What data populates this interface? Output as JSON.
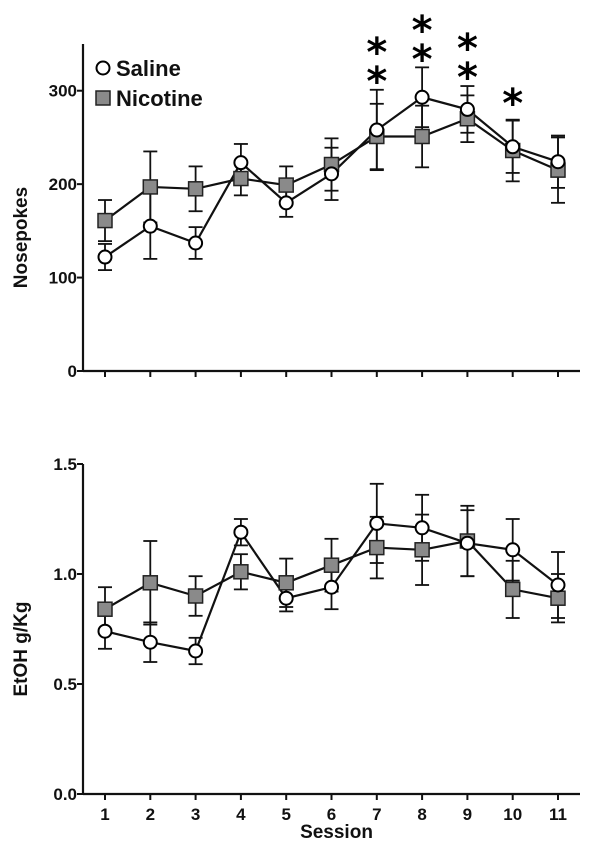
{
  "chart_data": [
    {
      "type": "line",
      "xlabel": "",
      "ylabel": "Nosepokes",
      "ylim": [
        0,
        350
      ],
      "yticks": [
        0,
        100,
        200,
        300
      ],
      "x": [
        1,
        2,
        3,
        4,
        5,
        6,
        7,
        8,
        9,
        10,
        11
      ],
      "legend": "top-left",
      "series": [
        {
          "name": "Saline",
          "marker": "open-circle",
          "color": "#000000",
          "values": [
            122,
            155,
            137,
            223,
            180,
            211,
            258,
            293,
            280,
            240,
            224
          ],
          "error": [
            14,
            35,
            17,
            20,
            15,
            28,
            43,
            32,
            25,
            28,
            28
          ]
        },
        {
          "name": "Nicotine",
          "marker": "filled-square",
          "color": "#8a8a8a",
          "values": [
            161,
            197,
            195,
            206,
            199,
            221,
            251,
            251,
            270,
            236,
            215
          ],
          "error": [
            22,
            38,
            24,
            18,
            20,
            28,
            35,
            33,
            25,
            33,
            35
          ]
        }
      ],
      "annotations": [
        {
          "x": 7,
          "text": "*"
        },
        {
          "x": 7,
          "text": "*"
        },
        {
          "x": 8,
          "text": "*"
        },
        {
          "x": 8,
          "text": "*"
        },
        {
          "x": 9,
          "text": "*"
        },
        {
          "x": 9,
          "text": "*"
        },
        {
          "x": 10,
          "text": "*"
        }
      ]
    },
    {
      "type": "line",
      "xlabel": "Session",
      "ylabel": "EtOH g/Kg",
      "ylim": [
        0,
        1.5
      ],
      "yticks": [
        "0.0",
        "0.5",
        "1.0",
        "1.5"
      ],
      "x": [
        1,
        2,
        3,
        4,
        5,
        6,
        7,
        8,
        9,
        10,
        11
      ],
      "xticks": [
        "1",
        "2",
        "3",
        "4",
        "5",
        "6",
        "7",
        "8",
        "9",
        "10",
        "11"
      ],
      "series": [
        {
          "name": "Saline",
          "marker": "open-circle",
          "color": "#000000",
          "values": [
            0.74,
            0.69,
            0.65,
            1.19,
            0.89,
            0.94,
            1.23,
            1.21,
            1.14,
            1.11,
            0.95
          ],
          "error": [
            0.08,
            0.09,
            0.06,
            0.06,
            0.06,
            0.1,
            0.18,
            0.15,
            0.15,
            0.14,
            0.15
          ]
        },
        {
          "name": "Nicotine",
          "marker": "filled-square",
          "color": "#8a8a8a",
          "values": [
            0.84,
            0.96,
            0.9,
            1.01,
            0.96,
            1.04,
            1.12,
            1.11,
            1.15,
            0.93,
            0.89
          ],
          "error": [
            0.1,
            0.19,
            0.09,
            0.08,
            0.11,
            0.12,
            0.14,
            0.16,
            0.16,
            0.13,
            0.11
          ]
        }
      ]
    }
  ]
}
